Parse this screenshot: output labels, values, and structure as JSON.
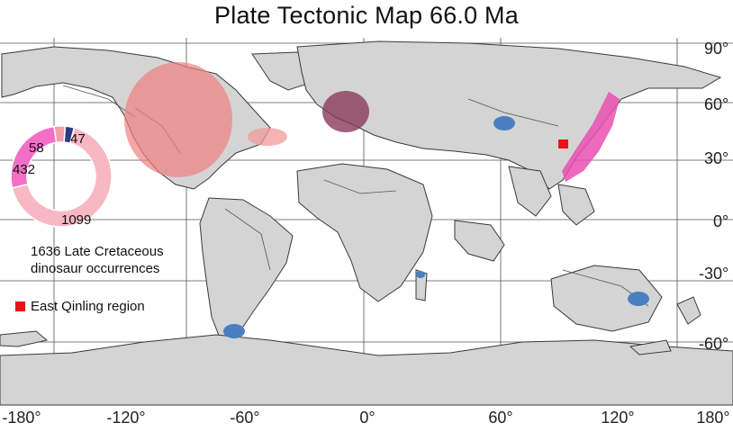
{
  "title": "Plate Tectonic Map 66.0 Ma",
  "lon_labels": [
    "-180°",
    "-120°",
    "-60°",
    "0°",
    "60°",
    "120°",
    "180°"
  ],
  "lat_labels": [
    "90°",
    "60°",
    "30°",
    "0°",
    "-30°",
    "-60°"
  ],
  "donut": {
    "segments": [
      {
        "value": "1099",
        "color": "#f7b8c4"
      },
      {
        "value": "432",
        "color": "#f36fc6"
      },
      {
        "value": "58",
        "color": "#f4a0a8"
      },
      {
        "value": "47",
        "color": "#2b3b8a"
      }
    ]
  },
  "caption_line1": "1636 Late Cretaceous",
  "caption_line2": "dinosaur occurrences",
  "legend": {
    "label": "East Qinling region",
    "color": "#ee1111"
  },
  "colors": {
    "land": "#d4d4d4",
    "ocean": "#ffffff",
    "coast": "#444444",
    "north_america_cluster": "#f08080",
    "europe_cluster": "#8a3a5a",
    "asia_cluster": "#e94fb0",
    "point_cluster": "#4a7fc1"
  }
}
